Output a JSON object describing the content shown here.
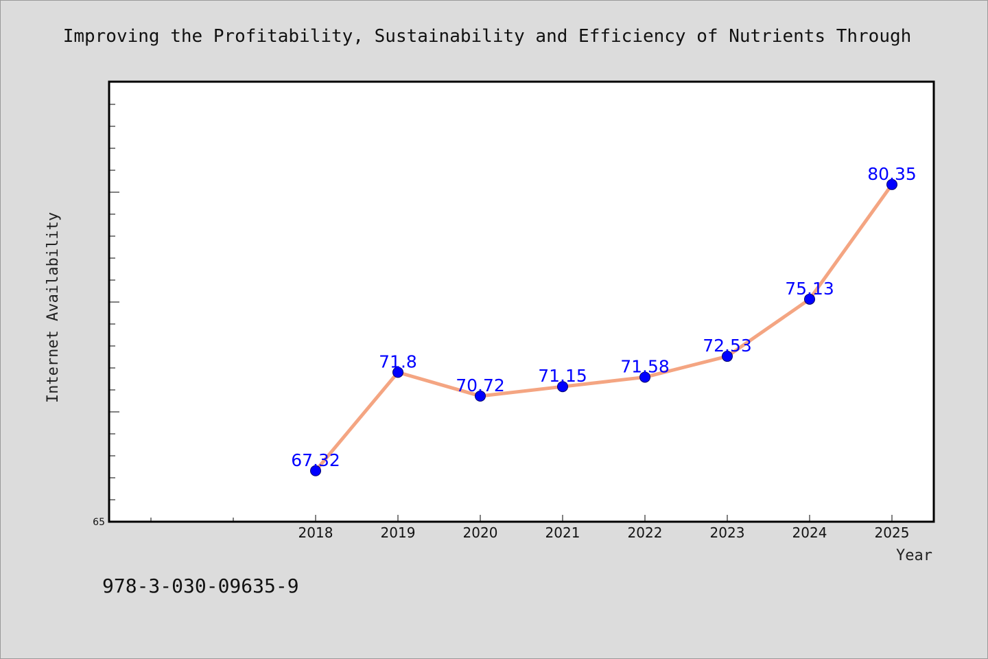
{
  "chart_data": {
    "type": "line",
    "title": "Improving the Profitability, Sustainability and Efficiency of Nutrients Through",
    "xlabel": "Year",
    "ylabel": "Internet Availability",
    "categories": [
      "2018",
      "2019",
      "2020",
      "2021",
      "2022",
      "2023",
      "2024",
      "2025"
    ],
    "series": [
      {
        "values": [
          67.32,
          71.8,
          70.72,
          71.15,
          71.58,
          72.53,
          75.13,
          80.35
        ]
      }
    ],
    "data_labels": [
      "67.32",
      "71.8",
      "70.72",
      "71.15",
      "71.58",
      "72.53",
      "75.13",
      "80.35"
    ],
    "y_tick_labels": [
      "65"
    ],
    "ylim": [
      65,
      85
    ],
    "grid": false,
    "legend": "none",
    "colors": {
      "line": "#f4a582",
      "marker": "#0000ff",
      "label": "#0000ff"
    }
  },
  "footer": {
    "isbn": "978-3-030-09635-9"
  }
}
